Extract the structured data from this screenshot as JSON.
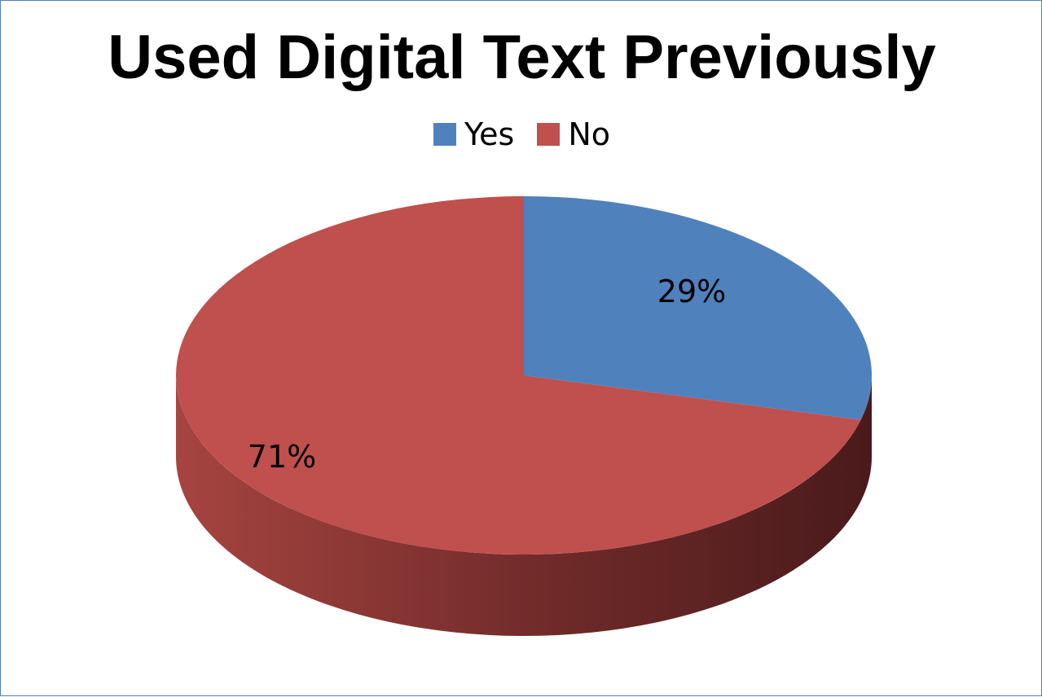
{
  "chart_data": {
    "type": "pie",
    "title": "Used Digital Text Previously",
    "legend_position": "top",
    "slices": [
      {
        "name": "Yes",
        "value": 29,
        "label": "29%",
        "color": "#4f81bd"
      },
      {
        "name": "No",
        "value": 71,
        "label": "71%",
        "color": "#c0504d"
      }
    ]
  }
}
